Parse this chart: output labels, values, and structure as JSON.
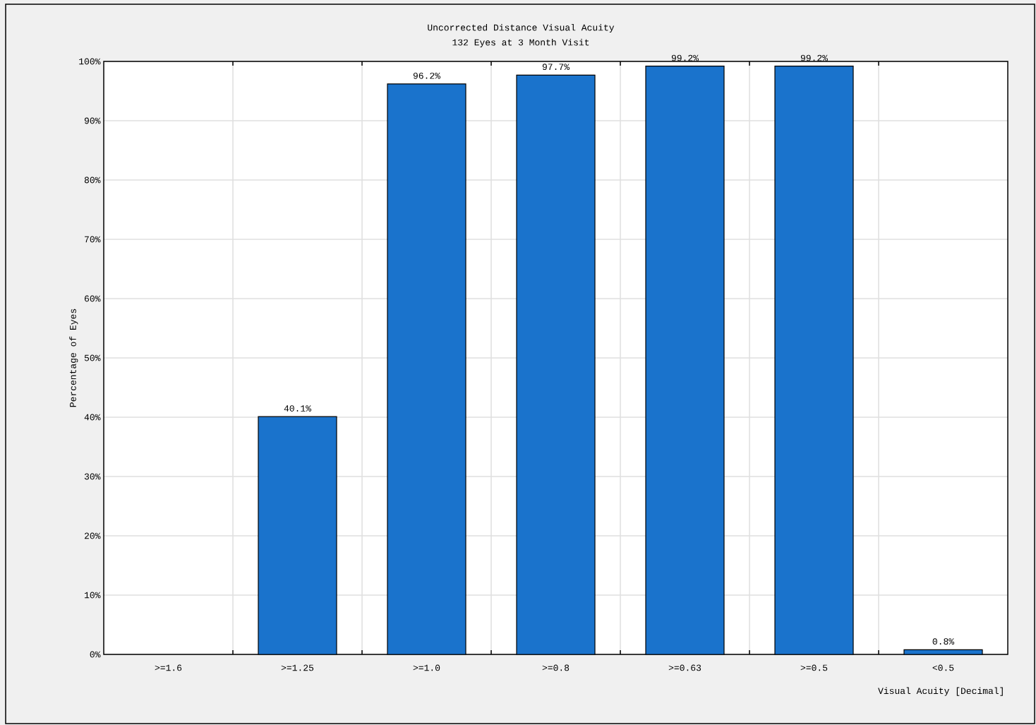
{
  "chart_data": {
    "type": "bar",
    "title": "Uncorrected Distance Visual Acuity",
    "subtitle": "132 Eyes at 3 Month Visit",
    "xlabel": "Visual Acuity [Decimal]",
    "ylabel": "Percentage of Eyes",
    "categories": [
      ">=1.6",
      ">=1.25",
      ">=1.0",
      ">=0.8",
      ">=0.63",
      ">=0.5",
      "<0.5"
    ],
    "values": [
      0,
      40.1,
      96.2,
      97.7,
      99.2,
      99.2,
      0.8
    ],
    "value_labels": [
      null,
      "40.1%",
      "96.2%",
      "97.7%",
      "99.2%",
      "99.2%",
      "0.8%"
    ],
    "color": "#1a73cc",
    "ylim": [
      0,
      100
    ],
    "yticks": [
      {
        "value": 0,
        "label": "0%"
      },
      {
        "value": 10,
        "label": "10%"
      },
      {
        "value": 20,
        "label": "20%"
      },
      {
        "value": 30,
        "label": "30%"
      },
      {
        "value": 40,
        "label": "40%"
      },
      {
        "value": 50,
        "label": "50%"
      },
      {
        "value": 60,
        "label": "60%"
      },
      {
        "value": 70,
        "label": "70%"
      },
      {
        "value": 80,
        "label": "80%"
      },
      {
        "value": 90,
        "label": "90%"
      },
      {
        "value": 100,
        "label": "100%"
      }
    ],
    "grid": true
  }
}
